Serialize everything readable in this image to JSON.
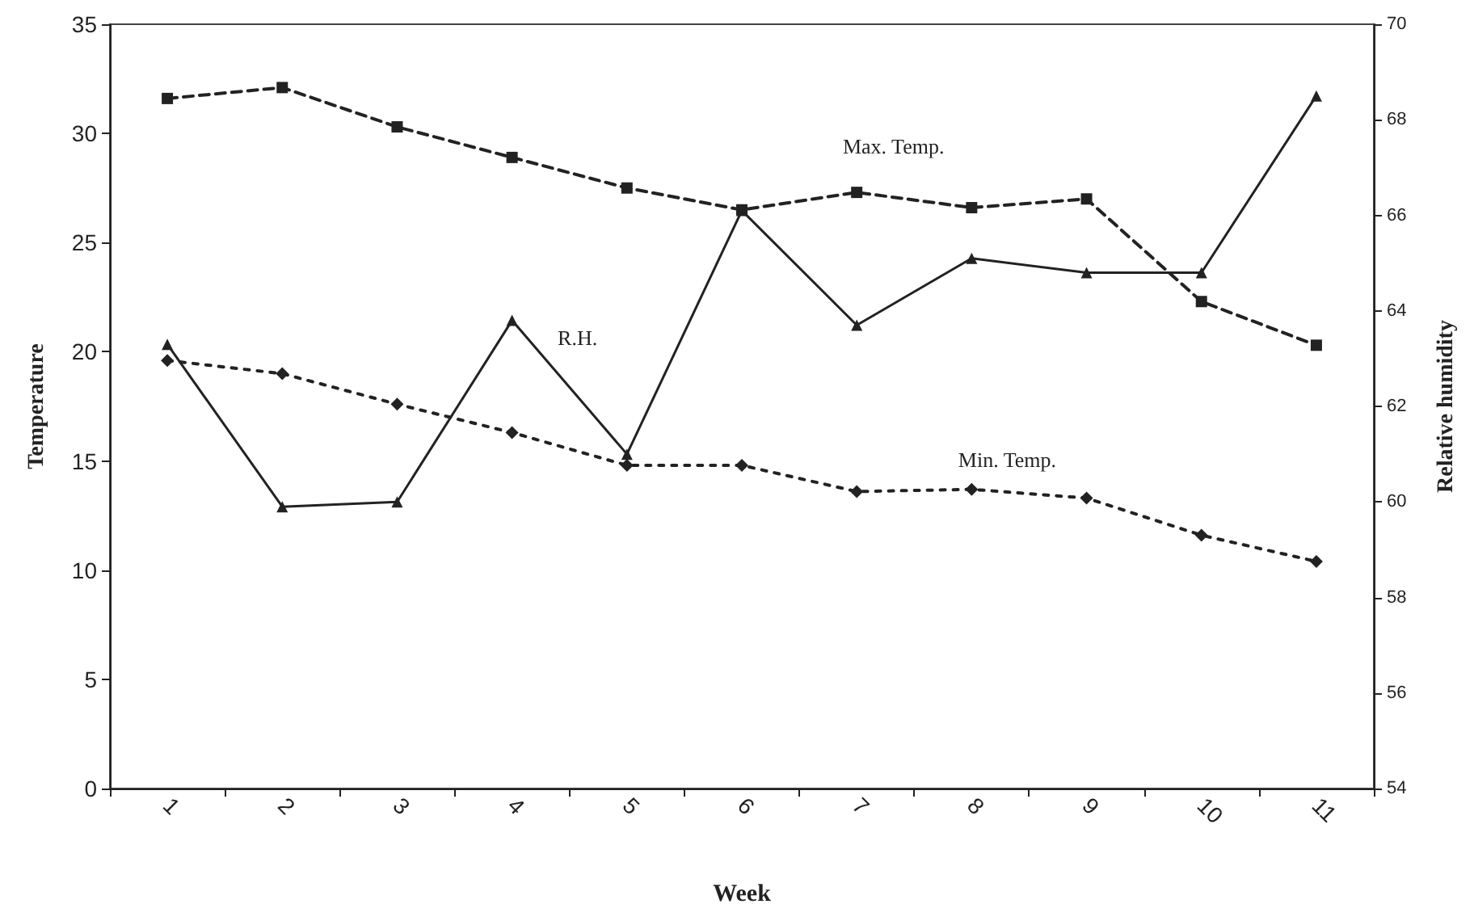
{
  "chart_data": {
    "type": "line",
    "xlabel": "Week",
    "ylabel": "Temperature",
    "y2label": "Relative humidity",
    "categories": [
      "1",
      "2",
      "3",
      "4",
      "5",
      "6",
      "7",
      "8",
      "9",
      "10",
      "11"
    ],
    "series": [
      {
        "color": "#222222",
        "marker": "square",
        "line_style": "dashed",
        "values": [
          31.6,
          32.1,
          30.3,
          28.9,
          27.5,
          26.5,
          27.3,
          26.6,
          27.0,
          22.3,
          20.3
        ]
      },
      {
        "color": "#222222",
        "marker": "diamond",
        "line_style": "dotted",
        "values": [
          19.6,
          19.0,
          17.6,
          16.3,
          14.8,
          14.8,
          13.6,
          13.7,
          13.3,
          11.6,
          10.4
        ]
      },
      {
        "color": "#222222",
        "marker": "triangle",
        "line_style": "solid",
        "axis": "y2",
        "values": [
          63.3,
          59.9,
          60.0,
          63.8,
          61.0,
          66.1,
          63.7,
          65.1,
          64.8,
          64.8,
          68.5
        ]
      }
    ],
    "annotations": [
      "R.H.",
      "Max. Temp.",
      "Min. Temp."
    ],
    "ylim": [
      0,
      35
    ],
    "yticks": [
      0,
      5,
      10,
      15,
      20,
      25,
      30,
      35
    ],
    "y2lim": [
      54,
      70
    ],
    "y2ticks": [
      54,
      56,
      58,
      60,
      62,
      64,
      66,
      68,
      70
    ],
    "grid": false
  }
}
